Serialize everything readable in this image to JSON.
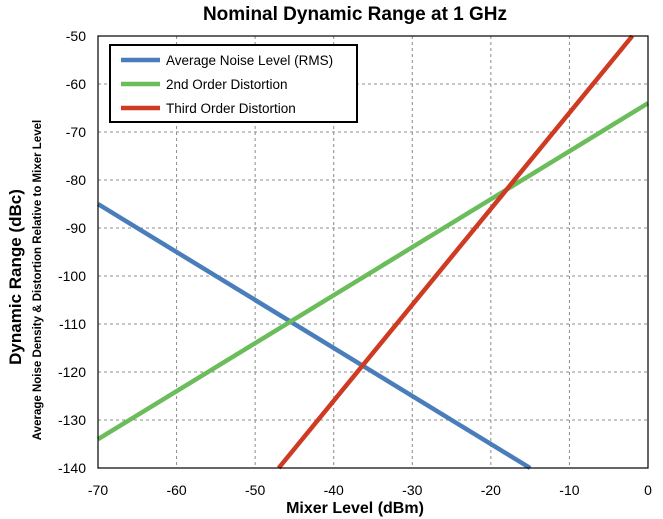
{
  "chart_data": {
    "type": "line",
    "title": "Nominal Dynamic Range at 1 GHz",
    "xlabel": "Mixer Level  (dBm)",
    "ylabel": "Dynamic Range (dBc)",
    "ylabel_sub": "Average Noise Density & Distortion Relative to Mixer Level",
    "xlim": [
      -70,
      0
    ],
    "ylim": [
      -140,
      -50
    ],
    "x_ticks": [
      -70,
      -60,
      -50,
      -40,
      -30,
      -20,
      -10,
      0
    ],
    "y_ticks": [
      -50,
      -60,
      -70,
      -80,
      -90,
      -100,
      -110,
      -120,
      -130,
      -140
    ],
    "grid": true,
    "legend_position": "top-left",
    "series": [
      {
        "name": "Average Noise Level (RMS)",
        "color": "#4a7ebb",
        "x": [
          -70,
          -15
        ],
        "y": [
          -85,
          -140
        ]
      },
      {
        "name": "2nd Order Distortion",
        "color": "#6bbd5b",
        "x": [
          -70,
          0
        ],
        "y": [
          -134,
          -64
        ]
      },
      {
        "name": "Third Order Distortion",
        "color": "#cf3a22",
        "x": [
          -47,
          -2
        ],
        "y": [
          -140,
          -50
        ]
      }
    ]
  }
}
